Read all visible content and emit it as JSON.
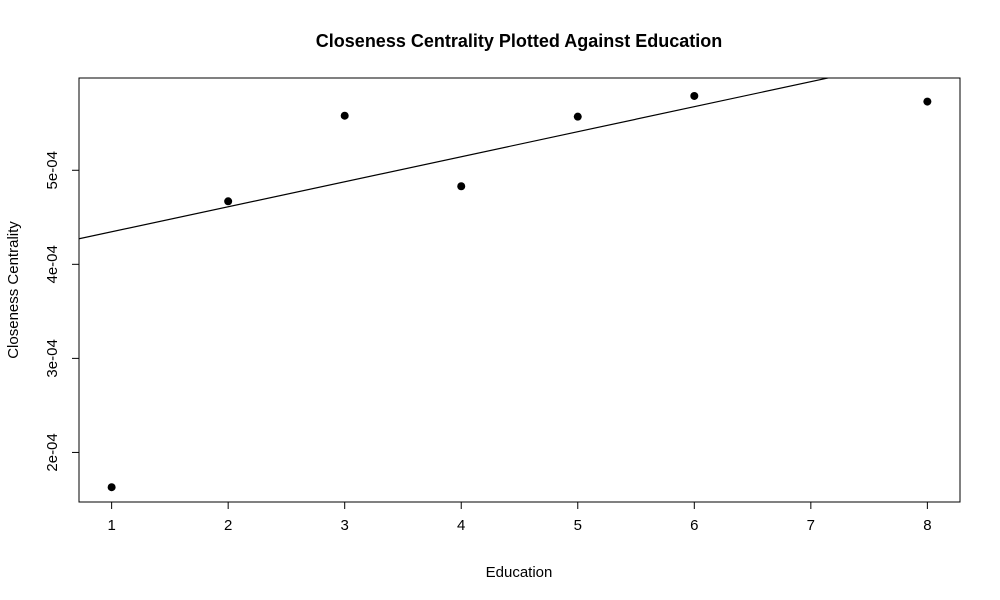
{
  "chart_data": {
    "type": "scatter",
    "title": "Closeness Centrality Plotted Against Education",
    "xlabel": "Education",
    "ylabel": "Closeness Centrality",
    "xlim": [
      0.72,
      8.28
    ],
    "ylim": [
      0.0001473,
      0.0005981
    ],
    "x_ticks": [
      1,
      2,
      3,
      4,
      5,
      6,
      7,
      8
    ],
    "y_ticks": [
      0.0002,
      0.0003,
      0.0004,
      0.0005
    ],
    "y_tick_labels": [
      "2e-04",
      "3e-04",
      "4e-04",
      "5e-04"
    ],
    "grid": false,
    "points": [
      {
        "x": 1,
        "y": 0.000163
      },
      {
        "x": 2,
        "y": 0.000467
      },
      {
        "x": 3,
        "y": 0.000558
      },
      {
        "x": 4,
        "y": 0.000483
      },
      {
        "x": 5,
        "y": 0.000557
      },
      {
        "x": 6,
        "y": 0.000579
      },
      {
        "x": 8,
        "y": 0.000573
      }
    ],
    "trend_line": {
      "intercept": 0.000408,
      "slope": 2.66e-05
    },
    "colors": {
      "point": "#000000",
      "line": "#000000",
      "text": "#000000"
    }
  }
}
